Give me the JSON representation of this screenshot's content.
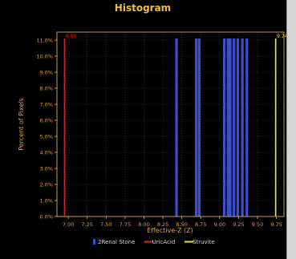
{
  "chart_data": {
    "type": "bar",
    "title": "Histogram",
    "xlabel": "Effective-Z (Z)",
    "ylabel": "Percent of Pixels",
    "xlim": [
      6.85,
      9.85
    ],
    "ylim": [
      0,
      11.5
    ],
    "x_ticks": [
      "7.00",
      "7.25",
      "7.50",
      "7.75",
      "8.00",
      "8.25",
      "8.50",
      "8.75",
      "9.00",
      "9.25",
      "9.50",
      "9.75"
    ],
    "y_ticks": [
      "0.0%",
      "1.0%",
      "2.0%",
      "3.0%",
      "4.0%",
      "5.0%",
      "6.0%",
      "7.0%",
      "8.0%",
      "9.0%",
      "10.0%",
      "11.0%"
    ],
    "grid": true,
    "legend_position": "bottom-center",
    "series": [
      {
        "name": "2Renal Stone",
        "color": "#3b4fd0",
        "x": [
          8.43,
          8.69,
          8.73,
          9.06,
          9.11,
          9.14,
          9.19,
          9.24,
          9.3,
          9.36
        ],
        "values": [
          11.1,
          11.1,
          11.1,
          11.1,
          11.1,
          11.1,
          11.1,
          11.1,
          11.1,
          11.1
        ]
      },
      {
        "name": "UricAcid",
        "color": "#e02020",
        "x": [
          6.95
        ],
        "values": [
          11.1
        ],
        "label": "6.95"
      },
      {
        "name": "Struvite",
        "color": "#e8e820",
        "x": [
          9.74
        ],
        "values": [
          11.1
        ],
        "label": "9.74"
      }
    ]
  },
  "colors": {
    "title": "#f0c030",
    "axis_text": "#d8a040",
    "grid": "#505050",
    "plot_border": "#c0a050",
    "legend_text": "#d0d0d0"
  }
}
